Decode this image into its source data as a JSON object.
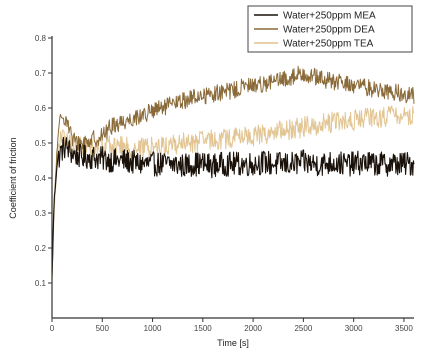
{
  "chart_data": {
    "type": "line",
    "title": "",
    "xlabel": "Time [s]",
    "ylabel": "Coefficient of friction",
    "xlim": [
      0,
      3600
    ],
    "ylim": [
      0.0,
      0.8
    ],
    "x_ticks": [
      0,
      500,
      1000,
      1500,
      2000,
      2500,
      3000,
      3500
    ],
    "y_ticks": [
      0.1,
      0.2,
      0.3,
      0.4,
      0.5,
      0.6,
      0.7,
      0.8
    ],
    "x_tick_labels": [
      "0",
      "500",
      "1000",
      "1500",
      "2000",
      "2500",
      "3000",
      "3500"
    ],
    "y_tick_labels": [
      "0.1",
      "0.2",
      "0.3",
      "0.4",
      "0.5",
      "0.6",
      "0.7",
      "0.8"
    ],
    "legend_position": "top-right",
    "grid": false,
    "series": [
      {
        "name": "Water+250ppm MEA",
        "color": "#1a120a",
        "x": [
          0,
          20,
          50,
          80,
          110,
          140,
          170,
          200,
          250,
          300,
          400,
          500,
          600,
          700,
          800,
          900,
          1000,
          1100,
          1200,
          1300,
          1400,
          1500,
          1600,
          1700,
          1800,
          1900,
          2000,
          2100,
          2200,
          2300,
          2400,
          2500,
          2600,
          2700,
          2800,
          2900,
          3000,
          3100,
          3200,
          3300,
          3400,
          3500,
          3600
        ],
        "values": [
          0.12,
          0.33,
          0.44,
          0.47,
          0.485,
          0.49,
          0.48,
          0.47,
          0.465,
          0.46,
          0.46,
          0.455,
          0.45,
          0.45,
          0.445,
          0.44,
          0.44,
          0.44,
          0.44,
          0.435,
          0.44,
          0.44,
          0.435,
          0.44,
          0.44,
          0.44,
          0.44,
          0.445,
          0.44,
          0.44,
          0.44,
          0.445,
          0.44,
          0.44,
          0.445,
          0.44,
          0.44,
          0.445,
          0.44,
          0.44,
          0.44,
          0.44,
          0.44
        ],
        "noise": 0.035
      },
      {
        "name": "Water+250ppm DEA",
        "color": "#8a6a38",
        "x": [
          0,
          20,
          50,
          80,
          110,
          140,
          170,
          200,
          250,
          300,
          400,
          500,
          600,
          700,
          800,
          900,
          1000,
          1100,
          1200,
          1300,
          1400,
          1500,
          1600,
          1700,
          1800,
          1900,
          2000,
          2100,
          2200,
          2300,
          2400,
          2500,
          2600,
          2700,
          2800,
          2900,
          3000,
          3100,
          3200,
          3300,
          3400,
          3500,
          3600
        ],
        "values": [
          0.1,
          0.32,
          0.48,
          0.56,
          0.58,
          0.57,
          0.55,
          0.51,
          0.5,
          0.5,
          0.51,
          0.52,
          0.55,
          0.56,
          0.57,
          0.58,
          0.59,
          0.6,
          0.61,
          0.62,
          0.63,
          0.635,
          0.64,
          0.645,
          0.65,
          0.66,
          0.665,
          0.67,
          0.675,
          0.68,
          0.69,
          0.7,
          0.69,
          0.68,
          0.675,
          0.67,
          0.665,
          0.66,
          0.655,
          0.65,
          0.645,
          0.64,
          0.635
        ],
        "noise": 0.025
      },
      {
        "name": "Water+250ppm TEA",
        "color": "#e0c28c",
        "x": [
          0,
          20,
          50,
          80,
          110,
          140,
          170,
          200,
          250,
          300,
          400,
          500,
          600,
          700,
          800,
          900,
          1000,
          1100,
          1200,
          1300,
          1400,
          1500,
          1600,
          1700,
          1800,
          1900,
          2000,
          2100,
          2200,
          2300,
          2400,
          2500,
          2600,
          2700,
          2800,
          2900,
          3000,
          3100,
          3200,
          3300,
          3400,
          3500,
          3600
        ],
        "values": [
          0.1,
          0.3,
          0.45,
          0.5,
          0.52,
          0.51,
          0.5,
          0.49,
          0.49,
          0.49,
          0.49,
          0.49,
          0.49,
          0.49,
          0.485,
          0.485,
          0.49,
          0.49,
          0.495,
          0.5,
          0.5,
          0.505,
          0.51,
          0.51,
          0.515,
          0.52,
          0.52,
          0.525,
          0.53,
          0.535,
          0.54,
          0.545,
          0.55,
          0.555,
          0.56,
          0.56,
          0.565,
          0.57,
          0.57,
          0.575,
          0.58,
          0.58,
          0.58
        ],
        "noise": 0.03
      }
    ]
  }
}
